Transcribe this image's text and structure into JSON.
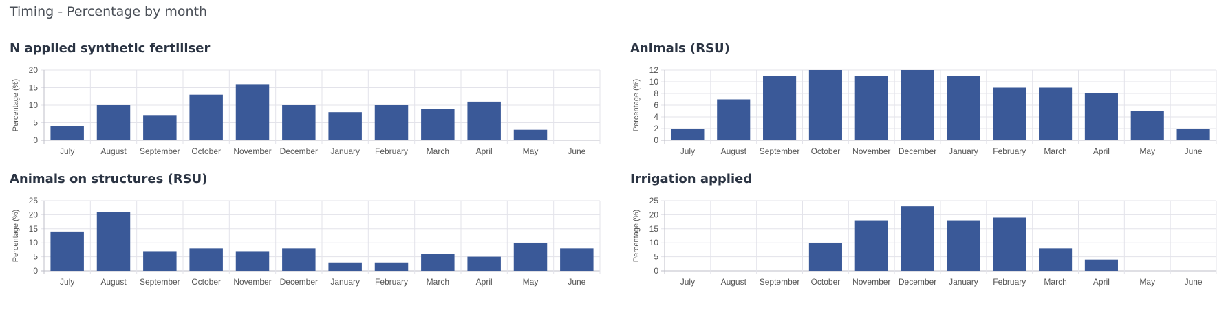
{
  "page": {
    "title": "Timing - Percentage by month"
  },
  "colors": {
    "bar": "#3a5998",
    "grid": "#e3e3ea",
    "axis": "#bfbfc8"
  },
  "chart_data": [
    {
      "type": "bar",
      "title": "N applied synthetic fertiliser",
      "ylabel": "Percentage (%)",
      "categories": [
        "July",
        "August",
        "September",
        "October",
        "November",
        "December",
        "January",
        "February",
        "March",
        "April",
        "May",
        "June"
      ],
      "values": [
        4,
        10,
        7,
        13,
        16,
        10,
        8,
        10,
        9,
        11,
        3,
        0
      ],
      "ylim": [
        0,
        20
      ],
      "yticks": [
        0,
        5,
        10,
        15,
        20
      ],
      "grid": true
    },
    {
      "type": "bar",
      "title": "Animals (RSU)",
      "ylabel": "Percentage (%)",
      "categories": [
        "July",
        "August",
        "September",
        "October",
        "November",
        "December",
        "January",
        "February",
        "March",
        "April",
        "May",
        "June"
      ],
      "values": [
        2,
        7,
        11,
        12,
        11,
        12,
        11,
        9,
        9,
        8,
        5,
        2
      ],
      "ylim": [
        0,
        12
      ],
      "yticks": [
        0,
        2,
        4,
        6,
        8,
        10,
        12
      ],
      "grid": true
    },
    {
      "type": "bar",
      "title": "Animals on structures (RSU)",
      "ylabel": "Percentage (%)",
      "categories": [
        "July",
        "August",
        "September",
        "October",
        "November",
        "December",
        "January",
        "February",
        "March",
        "April",
        "May",
        "June"
      ],
      "values": [
        14,
        21,
        7,
        8,
        7,
        8,
        3,
        3,
        6,
        5,
        10,
        8
      ],
      "ylim": [
        0,
        25
      ],
      "yticks": [
        0,
        5,
        10,
        15,
        20,
        25
      ],
      "grid": true
    },
    {
      "type": "bar",
      "title": "Irrigation applied",
      "ylabel": "Percentage (%)",
      "categories": [
        "July",
        "August",
        "September",
        "October",
        "November",
        "December",
        "January",
        "February",
        "March",
        "April",
        "May",
        "June"
      ],
      "values": [
        0,
        0,
        0,
        10,
        18,
        23,
        18,
        19,
        8,
        4,
        0,
        0
      ],
      "ylim": [
        0,
        25
      ],
      "yticks": [
        0,
        5,
        10,
        15,
        20,
        25
      ],
      "grid": true
    }
  ]
}
